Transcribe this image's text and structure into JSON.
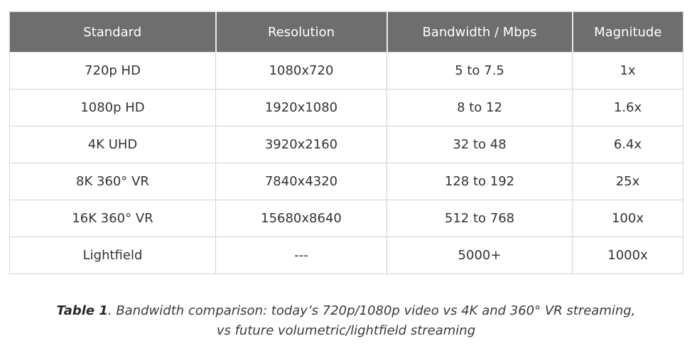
{
  "table": {
    "headers": [
      "Standard",
      "Resolution",
      "Bandwidth / Mbps",
      "Magnitude"
    ],
    "rows": [
      [
        "720p HD",
        "1080x720",
        "5 to 7.5",
        "1x"
      ],
      [
        "1080p HD",
        "1920x1080",
        "8 to 12",
        "1.6x"
      ],
      [
        "4K UHD",
        "3920x2160",
        "32 to 48",
        "6.4x"
      ],
      [
        "8K 360° VR",
        "7840x4320",
        "128 to 192",
        "25x"
      ],
      [
        "16K 360° VR",
        "15680x8640",
        "512 to 768",
        "100x"
      ],
      [
        "Lightfield",
        "---",
        "5000+",
        "1000x"
      ]
    ]
  },
  "caption": {
    "lead": "Table 1",
    "line1": ". Bandwidth comparison: today’s 720p/1080p video vs 4K and 360°  VR streaming,",
    "line2": "vs future volumetric/lightfield streaming"
  }
}
